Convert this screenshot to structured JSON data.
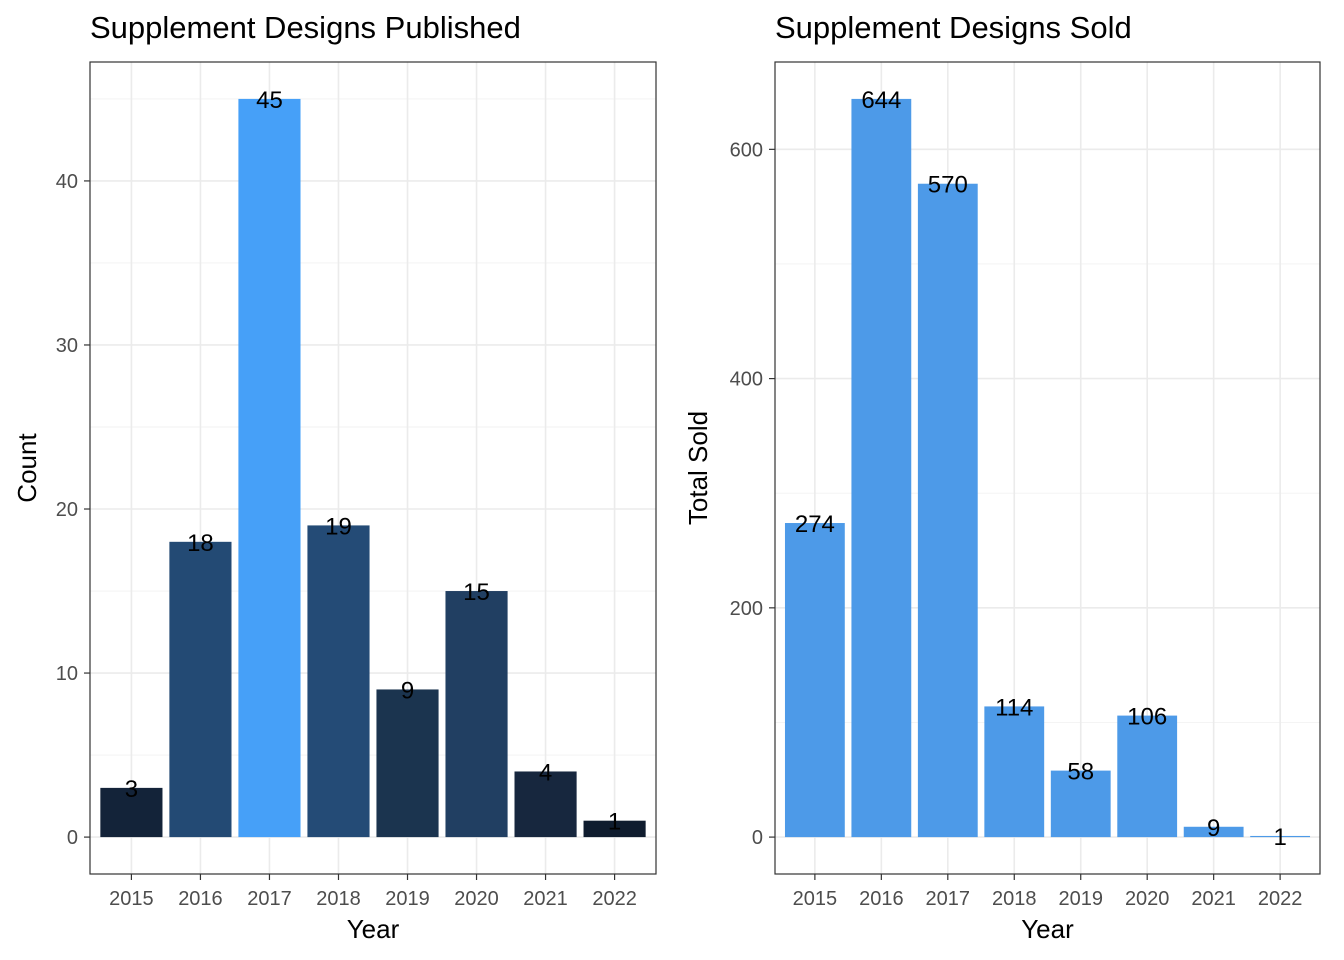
{
  "chart_data": [
    {
      "type": "bar",
      "title": "Supplement Designs Published",
      "xlabel": "Year",
      "ylabel": "Count",
      "categories": [
        "2015",
        "2016",
        "2017",
        "2018",
        "2019",
        "2020",
        "2021",
        "2022"
      ],
      "values": [
        3,
        18,
        45,
        19,
        9,
        15,
        4,
        1
      ],
      "data_labels": [
        "3",
        "18",
        "45",
        "19",
        "9",
        "15",
        "4",
        "1"
      ],
      "bar_colors": [
        "#132339",
        "#234a74",
        "#46a0f8",
        "#244b76",
        "#1b344f",
        "#213f62",
        "#17273e",
        "#0f1c2e"
      ],
      "ylim": [
        -2.25,
        47.25
      ],
      "yticks": [
        0,
        10,
        20,
        30,
        40
      ],
      "ytick_labels": [
        "0",
        "10",
        "20",
        "30",
        "40"
      ],
      "grid": true,
      "legend": "none"
    },
    {
      "type": "bar",
      "title": "Supplement Designs Sold",
      "xlabel": "Year",
      "ylabel": "Total Sold",
      "categories": [
        "2015",
        "2016",
        "2017",
        "2018",
        "2019",
        "2020",
        "2021",
        "2022"
      ],
      "values": [
        274,
        644,
        570,
        114,
        58,
        106,
        9,
        1
      ],
      "data_labels": [
        "274",
        "644",
        "570",
        "114",
        "58",
        "106",
        "9",
        "1"
      ],
      "bar_colors": [
        "#4d9ae8",
        "#4d9ae8",
        "#4d9ae8",
        "#4d9ae8",
        "#4d9ae8",
        "#4d9ae8",
        "#4d9ae8",
        "#4d9ae8"
      ],
      "ylim": [
        -32.2,
        676.2
      ],
      "yticks": [
        0,
        200,
        400,
        600
      ],
      "ytick_labels": [
        "0",
        "200",
        "400",
        "600"
      ],
      "grid": true,
      "legend": "none"
    }
  ]
}
